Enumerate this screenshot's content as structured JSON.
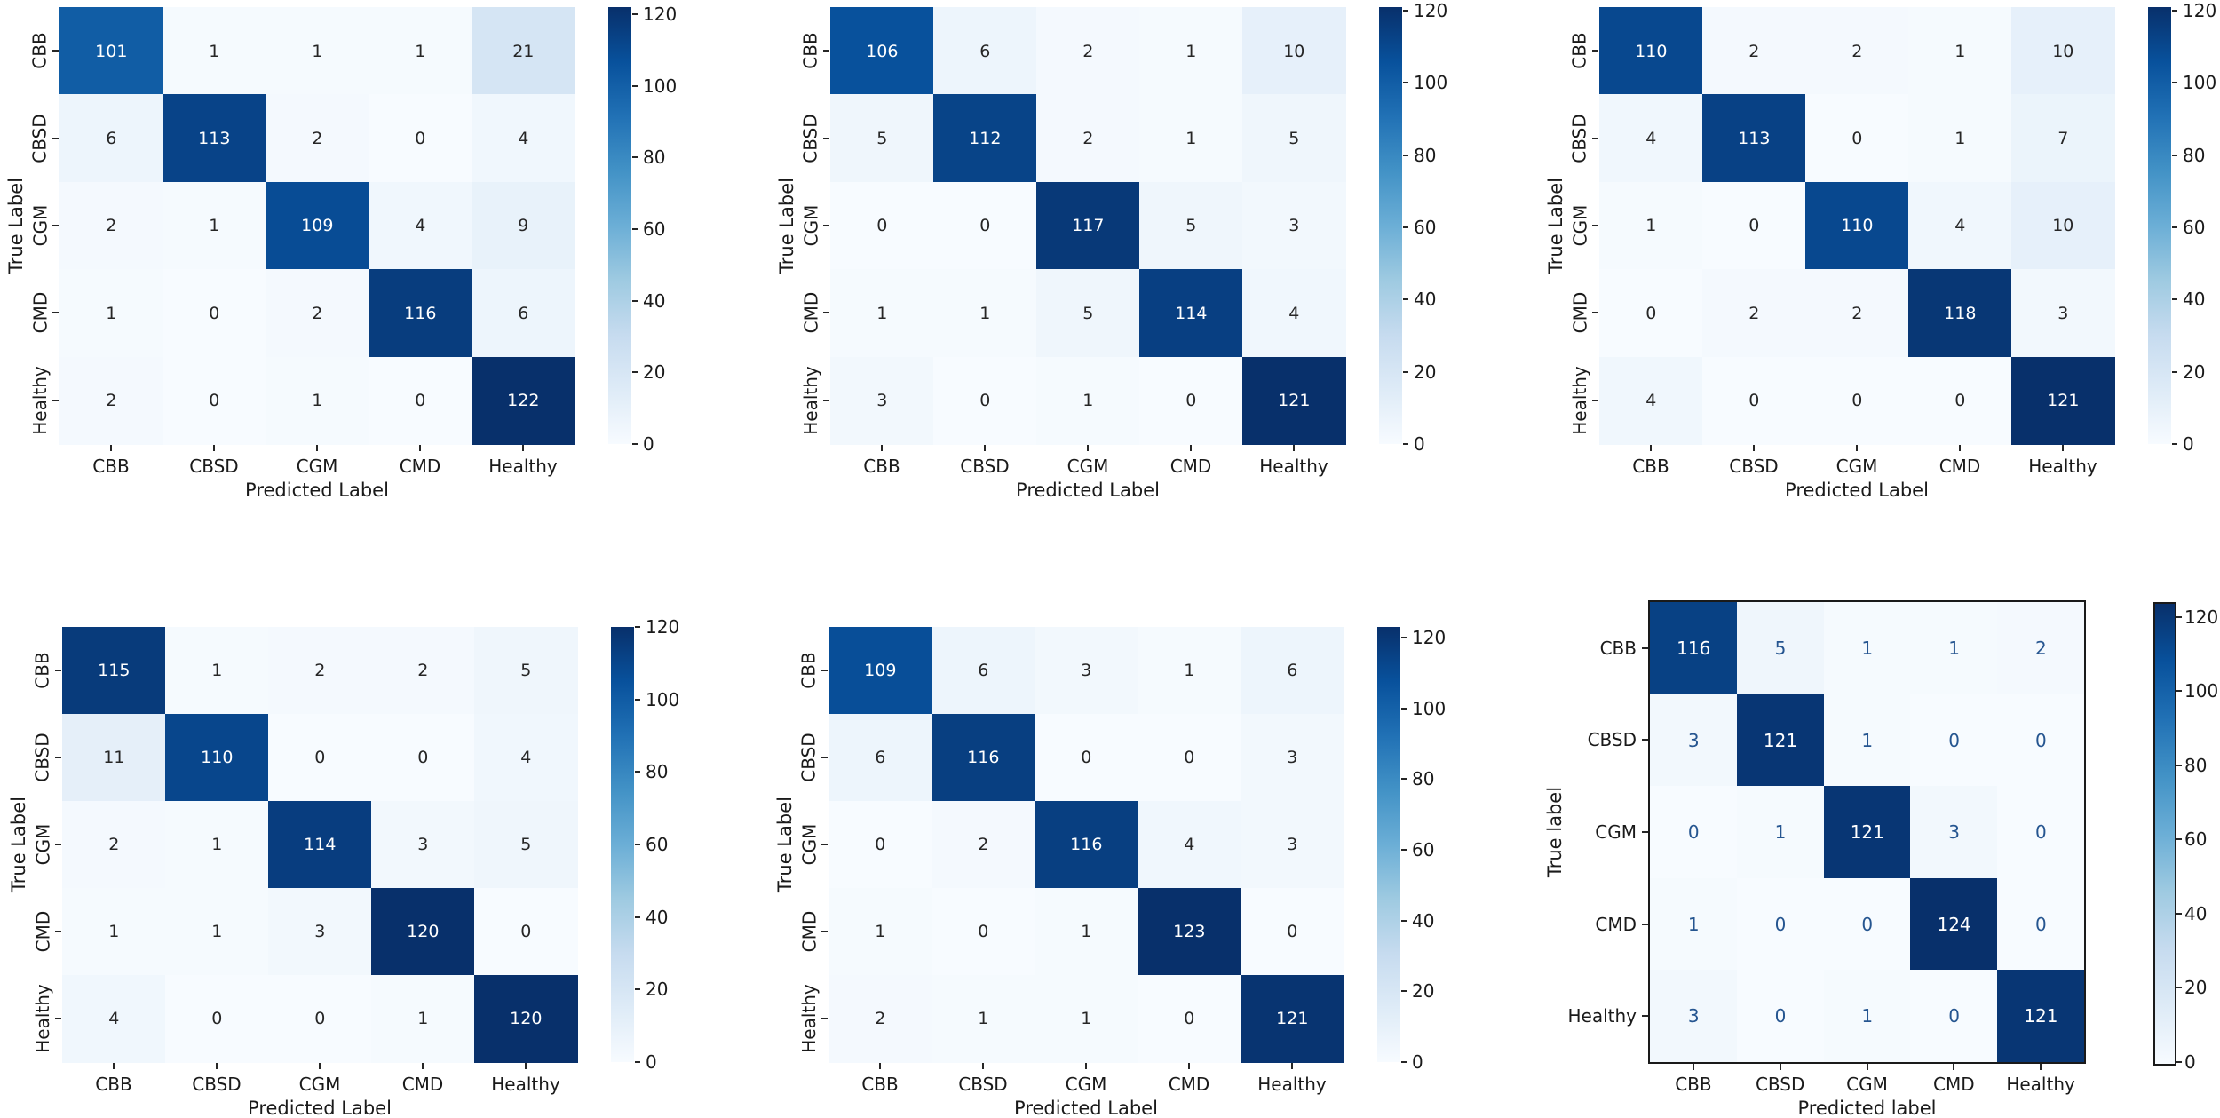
{
  "colors": {
    "colormap_name": "Blues",
    "colormap_stops": [
      "#f7fbff",
      "#deebf7",
      "#c6dbef",
      "#9ecae1",
      "#6baed6",
      "#4292c6",
      "#2171b5",
      "#08519c",
      "#08306b"
    ],
    "annot_dark": "#262626",
    "annot_light": "#ffffff",
    "sklearn_annot_blue": "#255590",
    "tick_text": "#1a1a1a",
    "frame_black": "#1a1a1a"
  },
  "chart_data": [
    {
      "type": "heatmap",
      "name": "confusion-matrix-1",
      "style": "seaborn",
      "xlabel": "Predicted Label",
      "ylabel": "True Label",
      "x_categories": [
        "CBB",
        "CBSD",
        "CGM",
        "CMD",
        "Healthy"
      ],
      "y_categories": [
        "CBB",
        "CBSD",
        "CGM",
        "CMD",
        "Healthy"
      ],
      "matrix": [
        [
          101,
          1,
          1,
          1,
          21
        ],
        [
          6,
          113,
          2,
          0,
          4
        ],
        [
          2,
          1,
          109,
          4,
          9
        ],
        [
          1,
          0,
          2,
          116,
          6
        ],
        [
          2,
          0,
          1,
          0,
          122
        ]
      ],
      "vmin": 0,
      "vmax": 122,
      "colorbar_ticks": [
        0,
        20,
        40,
        60,
        80,
        100,
        120
      ],
      "grid": false,
      "legend_position": "colorbar-right"
    },
    {
      "type": "heatmap",
      "name": "confusion-matrix-2",
      "style": "seaborn",
      "xlabel": "Predicted Label",
      "ylabel": "True Label",
      "x_categories": [
        "CBB",
        "CBSD",
        "CGM",
        "CMD",
        "Healthy"
      ],
      "y_categories": [
        "CBB",
        "CBSD",
        "CGM",
        "CMD",
        "Healthy"
      ],
      "matrix": [
        [
          106,
          6,
          2,
          1,
          10
        ],
        [
          5,
          112,
          2,
          1,
          5
        ],
        [
          0,
          0,
          117,
          5,
          3
        ],
        [
          1,
          1,
          5,
          114,
          4
        ],
        [
          3,
          0,
          1,
          0,
          121
        ]
      ],
      "vmin": 0,
      "vmax": 121,
      "colorbar_ticks": [
        0,
        20,
        40,
        60,
        80,
        100,
        120
      ],
      "grid": false,
      "legend_position": "colorbar-right"
    },
    {
      "type": "heatmap",
      "name": "confusion-matrix-3",
      "style": "seaborn",
      "xlabel": "Predicted Label",
      "ylabel": "True Label",
      "x_categories": [
        "CBB",
        "CBSD",
        "CGM",
        "CMD",
        "Healthy"
      ],
      "y_categories": [
        "CBB",
        "CBSD",
        "CGM",
        "CMD",
        "Healthy"
      ],
      "matrix": [
        [
          110,
          2,
          2,
          1,
          10
        ],
        [
          4,
          113,
          0,
          1,
          7
        ],
        [
          1,
          0,
          110,
          4,
          10
        ],
        [
          0,
          2,
          2,
          118,
          3
        ],
        [
          4,
          0,
          0,
          0,
          121
        ]
      ],
      "vmin": 0,
      "vmax": 121,
      "colorbar_ticks": [
        0,
        20,
        40,
        60,
        80,
        100,
        120
      ],
      "grid": false,
      "legend_position": "colorbar-right"
    },
    {
      "type": "heatmap",
      "name": "confusion-matrix-4",
      "style": "seaborn",
      "xlabel": "Predicted Label",
      "ylabel": "True Label",
      "x_categories": [
        "CBB",
        "CBSD",
        "CGM",
        "CMD",
        "Healthy"
      ],
      "y_categories": [
        "CBB",
        "CBSD",
        "CGM",
        "CMD",
        "Healthy"
      ],
      "matrix": [
        [
          115,
          1,
          2,
          2,
          5
        ],
        [
          11,
          110,
          0,
          0,
          4
        ],
        [
          2,
          1,
          114,
          3,
          5
        ],
        [
          1,
          1,
          3,
          120,
          0
        ],
        [
          4,
          0,
          0,
          1,
          120
        ]
      ],
      "vmin": 0,
      "vmax": 120,
      "colorbar_ticks": [
        0,
        20,
        40,
        60,
        80,
        100,
        120
      ],
      "grid": false,
      "legend_position": "colorbar-right"
    },
    {
      "type": "heatmap",
      "name": "confusion-matrix-5",
      "style": "seaborn",
      "xlabel": "Predicted Label",
      "ylabel": "True Label",
      "x_categories": [
        "CBB",
        "CBSD",
        "CGM",
        "CMD",
        "Healthy"
      ],
      "y_categories": [
        "CBB",
        "CBSD",
        "CGM",
        "CMD",
        "Healthy"
      ],
      "matrix": [
        [
          109,
          6,
          3,
          1,
          6
        ],
        [
          6,
          116,
          0,
          0,
          3
        ],
        [
          0,
          2,
          116,
          4,
          3
        ],
        [
          1,
          0,
          1,
          123,
          0
        ],
        [
          2,
          1,
          1,
          0,
          121
        ]
      ],
      "vmin": 0,
      "vmax": 123,
      "colorbar_ticks": [
        0,
        20,
        40,
        60,
        80,
        100,
        120
      ],
      "grid": false,
      "legend_position": "colorbar-right"
    },
    {
      "type": "heatmap",
      "name": "confusion-matrix-6",
      "style": "sklearn",
      "xlabel": "Predicted label",
      "ylabel": "True label",
      "x_categories": [
        "CBB",
        "CBSD",
        "CGM",
        "CMD",
        "Healthy"
      ],
      "y_categories": [
        "CBB",
        "CBSD",
        "CGM",
        "CMD",
        "Healthy"
      ],
      "matrix": [
        [
          116,
          5,
          1,
          1,
          2
        ],
        [
          3,
          121,
          1,
          0,
          0
        ],
        [
          0,
          1,
          121,
          3,
          0
        ],
        [
          1,
          0,
          0,
          124,
          0
        ],
        [
          3,
          0,
          1,
          0,
          121
        ]
      ],
      "vmin": 0,
      "vmax": 124,
      "colorbar_ticks": [
        0,
        20,
        40,
        60,
        80,
        100,
        120
      ],
      "grid": false,
      "legend_position": "colorbar-right"
    }
  ]
}
